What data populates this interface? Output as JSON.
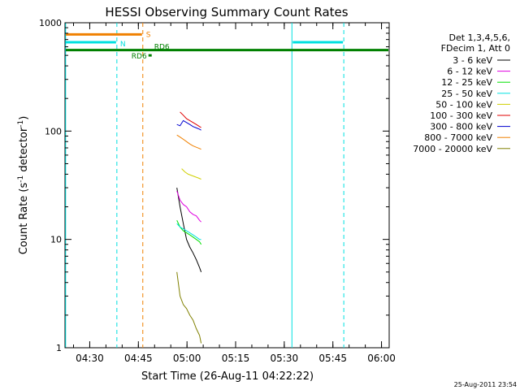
{
  "title": "HESSI Observing Summary Count Rates",
  "xlabel": "Start Time (26-Aug-11 04:22:22)",
  "ylabel_main": "Count Rate (s",
  "ylabel_sup1": "-1",
  "ylabel_mid": " detector",
  "ylabel_sup2": "-1",
  "ylabel_end": ")",
  "date_stamp": "25-Aug-2011 23:54",
  "legend": {
    "header1": "Det 1,3,4,5,6,",
    "header2": "FDecim 1, Att 0",
    "entries": [
      {
        "label": "3 - 6 keV",
        "color": "#000000"
      },
      {
        "label": "6 - 12 keV",
        "color": "#e000e0"
      },
      {
        "label": "12 - 25 keV",
        "color": "#00e000"
      },
      {
        "label": "25 - 50 keV",
        "color": "#00e0e0"
      },
      {
        "label": "50 - 100 keV",
        "color": "#d0d000"
      },
      {
        "label": "100 - 300 keV",
        "color": "#e00000"
      },
      {
        "label": "300 - 800 keV",
        "color": "#0000d0"
      },
      {
        "label": "800 - 7000 keV",
        "color": "#f08000"
      },
      {
        "label": "7000 - 20000 keV",
        "color": "#808000"
      }
    ]
  },
  "flags": {
    "s_label": "S",
    "n_label": "N",
    "rd_label_1": "RD6",
    "rd_label_2": "RD6"
  },
  "chart_data": {
    "type": "line",
    "title": "HESSI Observing Summary Count Rates",
    "xlabel": "Start Time (26-Aug-11 04:22:22)",
    "ylabel": "Count Rate (s^-1 detector^-1)",
    "x_ticks": [
      "04:30",
      "04:45",
      "05:00",
      "05:15",
      "05:30",
      "05:45",
      "06:00"
    ],
    "x_tick_minutes": [
      7.633,
      22.633,
      37.633,
      52.633,
      67.633,
      82.633,
      97.633
    ],
    "xlim_minutes": [
      0,
      100
    ],
    "y_scale": "log",
    "ylim": [
      1,
      1000
    ],
    "y_ticks": [
      "1",
      "10",
      "100",
      "1000"
    ],
    "y_tick_values": [
      1,
      10,
      100,
      1000
    ],
    "grid": false,
    "legend_position": "right",
    "series": [
      {
        "name": "3 - 6 keV",
        "color": "#000000",
        "x": [
          34.5,
          35.5,
          36.5,
          37.5,
          38.5,
          39.5,
          40.5,
          41.5,
          42.0
        ],
        "y": [
          30,
          20,
          14,
          10,
          8.5,
          7.5,
          6.5,
          5.5,
          5
        ]
      },
      {
        "name": "6 - 12 keV",
        "color": "#e000e0",
        "x": [
          34.5,
          35.5,
          36.5,
          37.5,
          38.5,
          39.5,
          40.5,
          41.5,
          42.0
        ],
        "y": [
          28,
          23,
          21,
          20,
          18,
          17,
          16.5,
          15,
          14.5
        ]
      },
      {
        "name": "12 - 25 keV",
        "color": "#00e000",
        "x": [
          34.5,
          35.5,
          36.5,
          37.5,
          38.5,
          39.5,
          40.5,
          41.5,
          42.0
        ],
        "y": [
          15,
          13,
          12,
          11.5,
          11,
          10.5,
          10,
          9.5,
          9
        ]
      },
      {
        "name": "25 - 50 keV",
        "color": "#00e0e0",
        "x": [
          34.5,
          35.5,
          36.5,
          37.5,
          38.5,
          39.5,
          40.5,
          41.5,
          42.0
        ],
        "y": [
          14,
          13,
          12.5,
          12,
          11.5,
          11,
          10.5,
          10,
          10
        ]
      },
      {
        "name": "50 - 100 keV",
        "color": "#d0d000",
        "x": [
          36.0,
          37.0,
          38.0,
          39.0,
          40.0,
          41.0,
          42.0
        ],
        "y": [
          45,
          42,
          40,
          39,
          38,
          37,
          36
        ]
      },
      {
        "name": "100 - 300 keV",
        "color": "#e00000",
        "x": [
          35.5,
          36.5,
          37.5,
          38.5,
          39.5,
          40.5,
          41.5,
          42.0
        ],
        "y": [
          150,
          140,
          130,
          125,
          120,
          115,
          110,
          108
        ]
      },
      {
        "name": "300 - 800 keV",
        "color": "#0000d0",
        "x": [
          34.5,
          35.5,
          36.5,
          37.5,
          38.5,
          39.5,
          40.5,
          41.5,
          42.0
        ],
        "y": [
          115,
          112,
          125,
          120,
          115,
          110,
          107,
          104,
          102
        ]
      },
      {
        "name": "800 - 7000 keV",
        "color": "#f08000",
        "x": [
          34.5,
          35.5,
          36.5,
          37.5,
          38.5,
          39.5,
          40.5,
          41.5,
          42.0
        ],
        "y": [
          92,
          88,
          84,
          80,
          76,
          73,
          71,
          69,
          68
        ]
      },
      {
        "name": "7000 - 20000 keV",
        "color": "#808000",
        "x": [
          34.5,
          35.5,
          36.5,
          37.5,
          38.5,
          39.5,
          40.5,
          41.5,
          42.0
        ],
        "y": [
          5,
          3,
          2.5,
          2.3,
          2.0,
          1.8,
          1.5,
          1.3,
          1.1
        ]
      }
    ],
    "annotations": [
      {
        "type": "attenuator_S",
        "label": "S",
        "x_start": 0,
        "x_end": 24.0,
        "y": 780,
        "color": "#f08000"
      },
      {
        "type": "night_N",
        "label": "N",
        "x_start": 0,
        "x_end": 16.0,
        "y": 660,
        "color": "#00e0e0"
      },
      {
        "type": "night_N",
        "label": "",
        "x_start": 70.0,
        "x_end": 86.0,
        "y": 660,
        "color": "#00e0e0"
      },
      {
        "type": "decimation_RD6",
        "label": "RD6",
        "x_start": 0,
        "x_end": 100,
        "y": 560,
        "color": "#008000"
      },
      {
        "type": "decimation_RD6",
        "label": "RD6",
        "x_start": 25.5,
        "x_end": 27.0,
        "y": 500,
        "color": "#008000"
      }
    ],
    "vertical_lines": [
      {
        "x": 0.2,
        "color": "#00e0e0",
        "dashed": false
      },
      {
        "x": 16.0,
        "color": "#00e0e0",
        "dashed": true
      },
      {
        "x": 24.0,
        "color": "#f08000",
        "dashed": true
      },
      {
        "x": 70.0,
        "color": "#00e0e0",
        "dashed": false
      },
      {
        "x": 86.0,
        "color": "#00e0e0",
        "dashed": true
      }
    ]
  }
}
